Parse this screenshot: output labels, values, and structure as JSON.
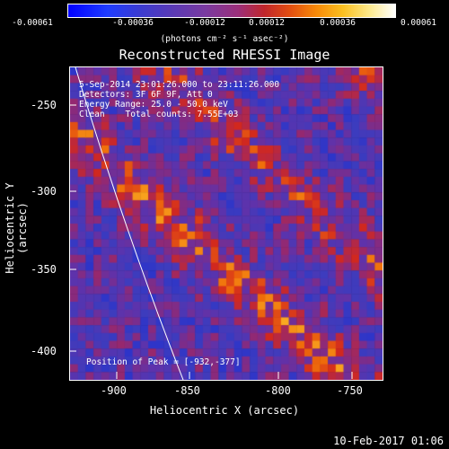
{
  "colorbar": {
    "ticks": [
      "-0.00061",
      "-0.00036",
      "-0.00012",
      "0.00012",
      "0.00036",
      "0.00061"
    ],
    "units": "(photons cm⁻² s⁻¹ asec⁻²)"
  },
  "title": "Reconstructed RHESSI Image",
  "info": {
    "line1": "5-Sep-2014 23:01:26.000 to 23:11:26.000",
    "line2": "Detectors: 3F 6F 9F, Att 0",
    "line3": "Energy Range: 25.0 - 50.0 keV",
    "line4": "Clean    Total counts: 7.55E+03",
    "peak": "Position of Peak = [-932,-377]"
  },
  "axes": {
    "xlabel": "Heliocentric X (arcsec)",
    "ylabel": "Heliocentric Y (arcsec)",
    "xticks": [
      "-900",
      "-850",
      "-800",
      "-750"
    ],
    "yticks": [
      "-250",
      "-300",
      "-350",
      "-400"
    ]
  },
  "timestamp": "10-Feb-2017 01:06"
}
